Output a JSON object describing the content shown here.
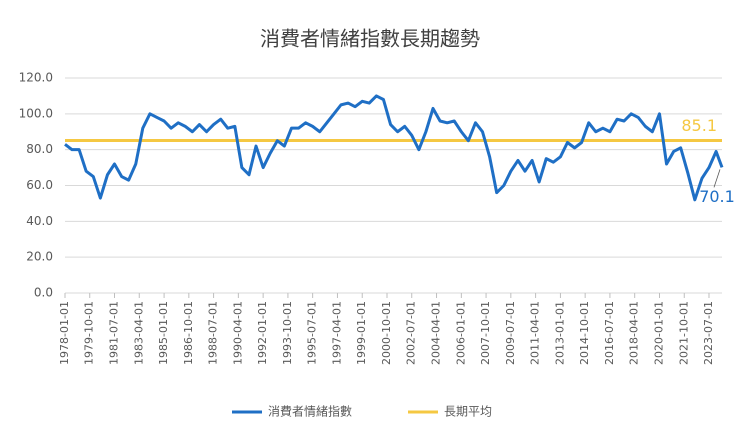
{
  "chart_data": {
    "type": "line",
    "title": "消費者情緒指數長期趨勢",
    "x": [
      "1978-01-01",
      "1978-07-01",
      "1979-01-01",
      "1979-07-01",
      "1980-01-01",
      "1980-07-01",
      "1981-01-01",
      "1981-07-01",
      "1982-01-01",
      "1982-07-01",
      "1983-01-01",
      "1983-07-01",
      "1984-01-01",
      "1984-07-01",
      "1985-01-01",
      "1985-07-01",
      "1986-01-01",
      "1986-07-01",
      "1987-01-01",
      "1987-07-01",
      "1988-01-01",
      "1988-07-01",
      "1989-01-01",
      "1989-07-01",
      "1990-01-01",
      "1990-07-01",
      "1991-01-01",
      "1991-07-01",
      "1992-01-01",
      "1992-07-01",
      "1993-01-01",
      "1993-07-01",
      "1994-01-01",
      "1994-07-01",
      "1995-01-01",
      "1995-07-01",
      "1996-01-01",
      "1996-07-01",
      "1997-01-01",
      "1997-07-01",
      "1998-01-01",
      "1998-07-01",
      "1999-01-01",
      "1999-07-01",
      "2000-01-01",
      "2000-07-01",
      "2001-01-01",
      "2001-07-01",
      "2002-01-01",
      "2002-07-01",
      "2003-01-01",
      "2003-07-01",
      "2004-01-01",
      "2004-07-01",
      "2005-01-01",
      "2005-07-01",
      "2006-01-01",
      "2006-07-01",
      "2007-01-01",
      "2007-07-01",
      "2008-01-01",
      "2008-07-01",
      "2009-01-01",
      "2009-07-01",
      "2010-01-01",
      "2010-07-01",
      "2011-01-01",
      "2011-07-01",
      "2012-01-01",
      "2012-07-01",
      "2013-01-01",
      "2013-07-01",
      "2014-01-01",
      "2014-07-01",
      "2015-01-01",
      "2015-07-01",
      "2016-01-01",
      "2016-07-01",
      "2017-01-01",
      "2017-07-01",
      "2018-01-01",
      "2018-07-01",
      "2019-01-01",
      "2019-07-01",
      "2020-01-01",
      "2020-07-01",
      "2021-01-01",
      "2021-07-01",
      "2022-01-01",
      "2022-07-01",
      "2023-01-01",
      "2023-07-01",
      "2024-01-01",
      "2024-06-01"
    ],
    "series": [
      {
        "name": "消費者情緒指數",
        "color": "#1f6fc5",
        "values": [
          83,
          80,
          80,
          68,
          65,
          53,
          66,
          72,
          65,
          63,
          72,
          92,
          100,
          98,
          96,
          92,
          95,
          93,
          90,
          94,
          90,
          94,
          97,
          92,
          93,
          70,
          66,
          82,
          70,
          78,
          85,
          82,
          92,
          92,
          95,
          93,
          90,
          95,
          100,
          105,
          106,
          104,
          107,
          106,
          110,
          108,
          94,
          90,
          93,
          88,
          80,
          90,
          103,
          96,
          95,
          96,
          90,
          85,
          95,
          90,
          76,
          56,
          60,
          68,
          74,
          68,
          74,
          62,
          75,
          73,
          76,
          84,
          81,
          84,
          95,
          90,
          92,
          90,
          97,
          96,
          100,
          98,
          93,
          90,
          100,
          72,
          79,
          81,
          67,
          52,
          64,
          70,
          79,
          70.1
        ]
      }
    ],
    "average": {
      "name": "長期平均",
      "value": 85.1,
      "color": "#f5c842"
    },
    "end_label": "70.1",
    "average_label": "85.1",
    "xlim": [
      "1978-01-01",
      "2024-06-01"
    ],
    "xticks": [
      "1978-01-01",
      "1979-10-01",
      "1981-07-01",
      "1983-04-01",
      "1985-01-01",
      "1986-10-01",
      "1988-07-01",
      "1990-04-01",
      "1992-01-01",
      "1993-10-01",
      "1995-07-01",
      "1997-04-01",
      "1999-01-01",
      "2000-10-01",
      "2002-07-01",
      "2004-04-01",
      "2006-01-01",
      "2007-10-01",
      "2009-07-01",
      "2011-04-01",
      "2013-01-01",
      "2014-10-01",
      "2016-07-01",
      "2018-04-01",
      "2020-01-01",
      "2021-10-01",
      "2023-07-01"
    ],
    "ylim": [
      0,
      120
    ],
    "yticks": [
      {
        "value": 0,
        "label": "0.0"
      },
      {
        "value": 20,
        "label": "20.0"
      },
      {
        "value": 40,
        "label": "40.0"
      },
      {
        "value": 60,
        "label": "60.0"
      },
      {
        "value": 80,
        "label": "80.0"
      },
      {
        "value": 100,
        "label": "100.0"
      },
      {
        "value": 120,
        "label": "120.0"
      }
    ],
    "grid": true
  }
}
